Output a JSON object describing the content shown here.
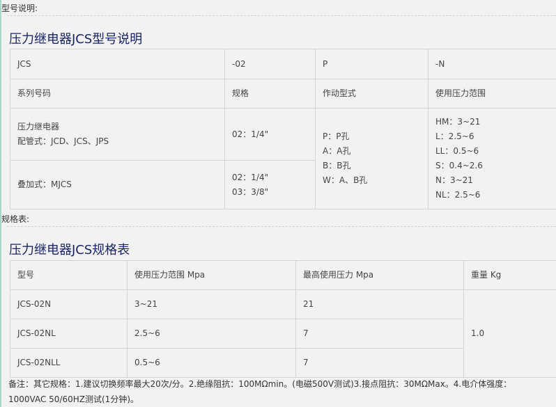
{
  "section1": {
    "label": "型号说明:",
    "title": "压力继电器JCS型号说明",
    "row1": [
      "JCS",
      "-02",
      "P",
      "-N"
    ],
    "row2": [
      "系列号码",
      "规格",
      "作动型式",
      "使用压力范围"
    ],
    "r3c1": [
      "压力继电器",
      "配管式：JCD、JCS、JPS"
    ],
    "r3c2": "02：1/4\"",
    "r4c1": "叠加式：MJCS",
    "r4c2": [
      "02：1/4\"",
      "03：3/8\""
    ],
    "actuation": [
      "P：P孔",
      "A：A孔",
      "B：B孔",
      "W：A、B孔"
    ],
    "pressure": [
      "HM：3~21",
      "L：2.5~6",
      "LL：0.5~6",
      "S：0.4~2.6",
      "N：3~21",
      "NL：2.5~6"
    ]
  },
  "section2": {
    "label": "规格表:",
    "title": "压力继电器JCS规格表",
    "headers": [
      "型号",
      "使用压力范围 Mpa",
      "最高使用压力 Mpa",
      "重量 Kg"
    ],
    "rows": [
      [
        "JCS-02N",
        "3~21",
        "21"
      ],
      [
        "JCS-02NL",
        "2.5~6",
        "7"
      ],
      [
        "JCS-02NLL",
        "0.5~6",
        "7"
      ]
    ],
    "weight": "1.0"
  },
  "note": "备注：其它规格：1.建议切换频率最大20次/分。2.绝缘阻抗：100MΩmin。(电磁500V测试)3.接点阻抗：30MΩMax。4.电介体强度：1000VAC 50/60HZ测试(1分钟)。"
}
